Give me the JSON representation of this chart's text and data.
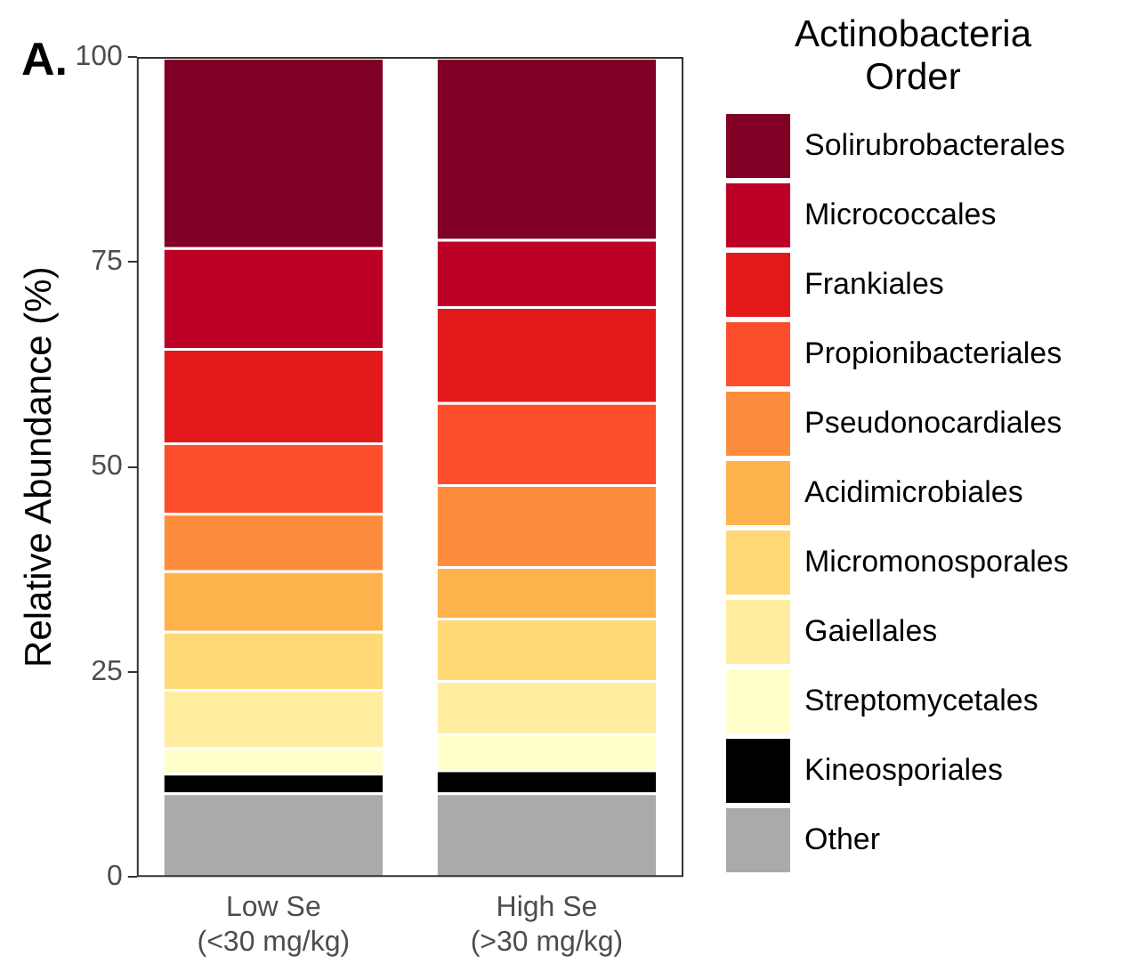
{
  "chart_data": {
    "type": "bar",
    "stacked": true,
    "ylabel": "Relative Abundance (%)",
    "legend_title": "Actinobacteria\nOrder",
    "legend": "right",
    "grid": false,
    "annotations": [
      "A."
    ],
    "categories": [
      "Low Se\n(<30 mg/kg)",
      "High Se\n(>30 mg/kg)"
    ],
    "ylim": [
      0,
      100
    ],
    "yticks": [
      0,
      25,
      50,
      75,
      100
    ],
    "series": [
      {
        "name": "Other",
        "color": "#aaaaaa",
        "values": [
          10.3,
          10.3
        ]
      },
      {
        "name": "Kineosporiales",
        "color": "#000000",
        "values": [
          2.4,
          2.8
        ]
      },
      {
        "name": "Streptomycetales",
        "color": "#ffffcc",
        "values": [
          3.1,
          4.4
        ]
      },
      {
        "name": "Gaiellales",
        "color": "#ffeda0",
        "values": [
          7.1,
          6.5
        ]
      },
      {
        "name": "Micromonosporales",
        "color": "#fed976",
        "values": [
          7.1,
          7.6
        ]
      },
      {
        "name": "Acidimicrobiales",
        "color": "#feb24c",
        "values": [
          7.4,
          6.3
        ]
      },
      {
        "name": "Pseudonocardiales",
        "color": "#fd8d3c",
        "values": [
          7.0,
          10.0
        ]
      },
      {
        "name": "Propionibacteriales",
        "color": "#fc4e2a",
        "values": [
          8.6,
          10.0
        ]
      },
      {
        "name": "Frankiales",
        "color": "#e31a1c",
        "values": [
          11.5,
          11.7
        ]
      },
      {
        "name": "Micrococcales",
        "color": "#bd0026",
        "values": [
          12.3,
          8.2
        ]
      },
      {
        "name": "Solirubrobacterales",
        "color": "#800026",
        "values": [
          23.2,
          22.2
        ]
      }
    ]
  }
}
